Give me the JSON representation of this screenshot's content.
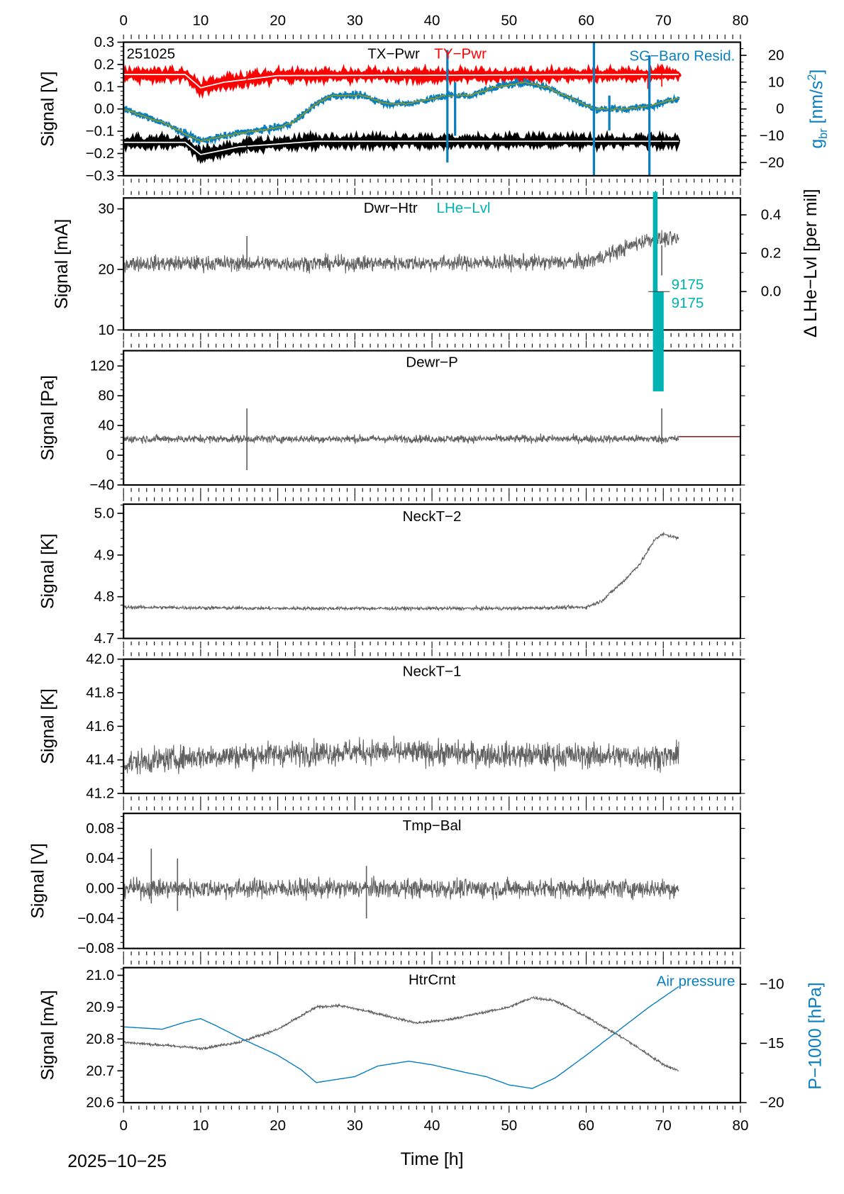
{
  "date_label": "2025−10−25",
  "x_axis": {
    "label": "Time [h]",
    "range": [
      0,
      80
    ],
    "ticks": [
      0,
      10,
      20,
      30,
      40,
      50,
      60,
      70,
      80
    ],
    "tick_labels": [
      "0",
      "10",
      "20",
      "30",
      "40",
      "50",
      "60",
      "70",
      "80"
    ]
  },
  "colors": {
    "tx": "#000000",
    "ty": "#ff0000",
    "sg": "#0a7fc0",
    "fit": "#9a9a10",
    "lhe": "#00b3b3",
    "grey": "#606060",
    "air": "#0a7fc0",
    "dewr_ref": "#800000"
  },
  "chart_data": [
    {
      "type": "line",
      "title": "TX−Pwr",
      "title2": "TY−Pwr",
      "id_label": "251025",
      "right_title": "SG−Baro Resid.",
      "ylabel": "Signal [V]",
      "ylim": [
        -0.3,
        0.3
      ],
      "yticks": [
        0.3,
        0.2,
        0.1,
        0.0,
        -0.1,
        -0.2,
        -0.3
      ],
      "ytick_labels": [
        "0.3",
        "0.2",
        "0.1",
        "0.0",
        "−0.1",
        "−0.2",
        "−0.3"
      ],
      "y2label_parts": [
        "g",
        "br",
        " [nm/s",
        "2",
        "]"
      ],
      "y2lim": [
        -24.9,
        24.9
      ],
      "y2ticks": [
        20,
        10,
        0,
        -10,
        -20
      ],
      "y2tick_labels": [
        "20",
        "10",
        "0",
        "−10",
        "−20"
      ],
      "series": [
        {
          "name": "TY−Pwr",
          "color": "#ff0000",
          "style": "band",
          "axis": "left",
          "points": [
            [
              0,
              0.155
            ],
            [
              8,
              0.155
            ],
            [
              10,
              0.095
            ],
            [
              13,
              0.12
            ],
            [
              20,
              0.15
            ],
            [
              72,
              0.155
            ]
          ],
          "spikes": [
            [
              0,
              0.09,
              0.22
            ],
            [
              16,
              0.1,
              0.17
            ],
            [
              68,
              0.09,
              0.16
            ],
            [
              69.8,
              0.1,
              0.2
            ]
          ]
        },
        {
          "name": "TX−Pwr",
          "color": "#000000",
          "style": "band",
          "axis": "left",
          "points": [
            [
              0,
              -0.15
            ],
            [
              8,
              -0.15
            ],
            [
              10,
              -0.205
            ],
            [
              15,
              -0.17
            ],
            [
              25,
              -0.145
            ],
            [
              72,
              -0.145
            ]
          ],
          "spikes": [
            [
              0,
              -0.24,
              -0.1
            ],
            [
              16,
              -0.2,
              -0.12
            ],
            [
              68.2,
              -0.24,
              -0.15
            ],
            [
              69.8,
              -0.18,
              -0.12
            ]
          ]
        },
        {
          "name": "SG−Baro Resid.",
          "color": "#0a7fc0",
          "style": "noisy-fit",
          "axis": "right",
          "points": [
            [
              0,
              0
            ],
            [
              5,
              -5
            ],
            [
              10,
              -12
            ],
            [
              15,
              -9
            ],
            [
              20,
              -7
            ],
            [
              22,
              -5
            ],
            [
              25,
              2
            ],
            [
              27,
              5
            ],
            [
              31,
              5
            ],
            [
              34,
              2
            ],
            [
              37,
              2
            ],
            [
              42,
              5
            ],
            [
              45,
              5
            ],
            [
              48,
              8
            ],
            [
              52,
              10
            ],
            [
              55,
              8
            ],
            [
              58,
              4
            ],
            [
              61,
              0
            ],
            [
              65,
              0
            ],
            [
              68,
              1
            ],
            [
              72,
              4
            ]
          ],
          "spikes": [
            [
              42,
              -20,
              22
            ],
            [
              43,
              -10,
              10
            ],
            [
              61,
              -25,
              25
            ],
            [
              63,
              -8,
              5
            ],
            [
              68.2,
              -25,
              20
            ]
          ]
        }
      ]
    },
    {
      "type": "line",
      "title": "Dwr−Htr",
      "title2": "LHe−Lvl",
      "ylabel": "Signal [mA]",
      "ylim": [
        10,
        31.8
      ],
      "yticks": [
        30,
        20,
        10
      ],
      "ytick_labels": [
        "30",
        "20",
        "10"
      ],
      "y2label": "Δ LHe−Lvl [per mil]",
      "y2lim": [
        -0.2,
        0.488
      ],
      "y2ticks": [
        0.4,
        0.2,
        0.0
      ],
      "y2tick_labels": [
        "0.4",
        "0.2",
        "0.0"
      ],
      "lhe_marker_labels": [
        "9175",
        "9175"
      ],
      "series": [
        {
          "color": "#606060",
          "style": "noisy",
          "axis": "left",
          "points": [
            [
              0,
              21
            ],
            [
              30,
              21
            ],
            [
              60,
              21.2
            ],
            [
              63,
              22.5
            ],
            [
              66,
              24
            ],
            [
              68,
              25
            ],
            [
              72,
              25
            ]
          ],
          "spikes": [
            [
              0,
              12,
              24
            ],
            [
              16,
              20,
              25.5
            ],
            [
              69.8,
              19,
              24
            ]
          ]
        }
      ]
    },
    {
      "type": "line",
      "title": "Dewr−P",
      "ylabel": "Signal [Pa]",
      "ylim": [
        -40,
        140.6
      ],
      "yticks": [
        120,
        80,
        40,
        0,
        -40
      ],
      "ytick_labels": [
        "120",
        "80",
        "40",
        "0",
        "−40"
      ],
      "series": [
        {
          "color": "#606060",
          "style": "noisy",
          "axis": "left",
          "points": [
            [
              0,
              22
            ],
            [
              72,
              22
            ]
          ],
          "spikes": [
            [
              0,
              -20,
              45
            ],
            [
              16,
              -20,
              63
            ],
            [
              69.8,
              15,
              63
            ]
          ]
        },
        {
          "color": "#800000",
          "style": "plain",
          "axis": "left",
          "points": [
            [
              72,
              25
            ],
            [
              80,
              25
            ]
          ]
        }
      ]
    },
    {
      "type": "line",
      "title": "NeckT−2",
      "ylabel": "Signal [K]",
      "ylim": [
        4.7,
        5.022
      ],
      "yticks": [
        5.0,
        4.9,
        4.8,
        4.7
      ],
      "ytick_labels": [
        "5.0",
        "4.9",
        "4.8",
        "4.7"
      ],
      "series": [
        {
          "color": "#606060",
          "style": "noisy",
          "axis": "left",
          "points": [
            [
              0,
              4.775
            ],
            [
              20,
              4.772
            ],
            [
              50,
              4.772
            ],
            [
              60,
              4.775
            ],
            [
              62,
              4.79
            ],
            [
              65,
              4.84
            ],
            [
              67,
              4.88
            ],
            [
              69,
              4.94
            ],
            [
              70,
              4.95
            ],
            [
              72,
              4.94
            ]
          ]
        }
      ]
    },
    {
      "type": "line",
      "title": "NeckT−1",
      "ylabel": "Signal [K]",
      "ylim": [
        41.2,
        42.0
      ],
      "yticks": [
        42.0,
        41.8,
        41.6,
        41.4,
        41.2
      ],
      "ytick_labels": [
        "42.0",
        "41.8",
        "41.6",
        "41.4",
        "41.2"
      ],
      "series": [
        {
          "color": "#606060",
          "style": "noisy",
          "axis": "left",
          "points": [
            [
              0,
              41.38
            ],
            [
              10,
              41.42
            ],
            [
              30,
              41.45
            ],
            [
              50,
              41.43
            ],
            [
              72,
              41.42
            ]
          ]
        }
      ]
    },
    {
      "type": "line",
      "title": "Tmp−Bal",
      "ylabel": "Signal [V]",
      "ylim": [
        -0.08,
        0.1
      ],
      "yticks": [
        0.08,
        0.04,
        0.0,
        -0.04,
        -0.08
      ],
      "ytick_labels": [
        "0.08",
        "0.04",
        "0.00",
        "−0.04",
        "−0.08"
      ],
      "series": [
        {
          "color": "#606060",
          "style": "noisy",
          "axis": "left",
          "points": [
            [
              0,
              0
            ],
            [
              72,
              0
            ]
          ],
          "spikes": [
            [
              3.6,
              -0.02,
              0.053
            ],
            [
              31.5,
              -0.04,
              0.03
            ],
            [
              7,
              -0.03,
              0.04
            ]
          ]
        }
      ]
    },
    {
      "type": "line",
      "title": "HtrCrnt",
      "right_title": "Air pressure",
      "ylabel": "Signal [mA]",
      "ylim": [
        20.6,
        21.024
      ],
      "yticks": [
        21.0,
        20.9,
        20.8,
        20.7,
        20.6
      ],
      "ytick_labels": [
        "21.0",
        "20.9",
        "20.8",
        "20.7",
        "20.6"
      ],
      "y2label": "P−1000 [hPa]",
      "y2lim": [
        -20,
        -8.6
      ],
      "y2ticks": [
        -10,
        -15,
        -20
      ],
      "y2tick_labels": [
        "−10",
        "−15",
        "−20"
      ],
      "series": [
        {
          "color": "#606060",
          "style": "noisy",
          "axis": "left",
          "points": [
            [
              0,
              20.79
            ],
            [
              8,
              20.775
            ],
            [
              10,
              20.77
            ],
            [
              15,
              20.79
            ],
            [
              20,
              20.83
            ],
            [
              25,
              20.9
            ],
            [
              28,
              20.905
            ],
            [
              32,
              20.885
            ],
            [
              38,
              20.85
            ],
            [
              42,
              20.86
            ],
            [
              46,
              20.88
            ],
            [
              50,
              20.9
            ],
            [
              53,
              20.93
            ],
            [
              56,
              20.92
            ],
            [
              60,
              20.87
            ],
            [
              65,
              20.8
            ],
            [
              70,
              20.72
            ],
            [
              72,
              20.7
            ]
          ]
        },
        {
          "name": "Air pressure",
          "color": "#0a7fc0",
          "style": "plain",
          "axis": "right",
          "points": [
            [
              0,
              -13.6
            ],
            [
              5,
              -13.8
            ],
            [
              8,
              -13.2
            ],
            [
              10,
              -12.9
            ],
            [
              12,
              -13.5
            ],
            [
              15,
              -14.5
            ],
            [
              20,
              -16
            ],
            [
              23,
              -17.2
            ],
            [
              25,
              -18.3
            ],
            [
              28,
              -18
            ],
            [
              30,
              -17.8
            ],
            [
              33,
              -16.9
            ],
            [
              37,
              -16.5
            ],
            [
              40,
              -16.8
            ],
            [
              44,
              -17.4
            ],
            [
              47,
              -17.8
            ],
            [
              50,
              -18.5
            ],
            [
              53,
              -18.8
            ],
            [
              56,
              -17.9
            ],
            [
              60,
              -16
            ],
            [
              64,
              -14
            ],
            [
              68,
              -12
            ],
            [
              72,
              -10.2
            ]
          ]
        }
      ]
    }
  ]
}
